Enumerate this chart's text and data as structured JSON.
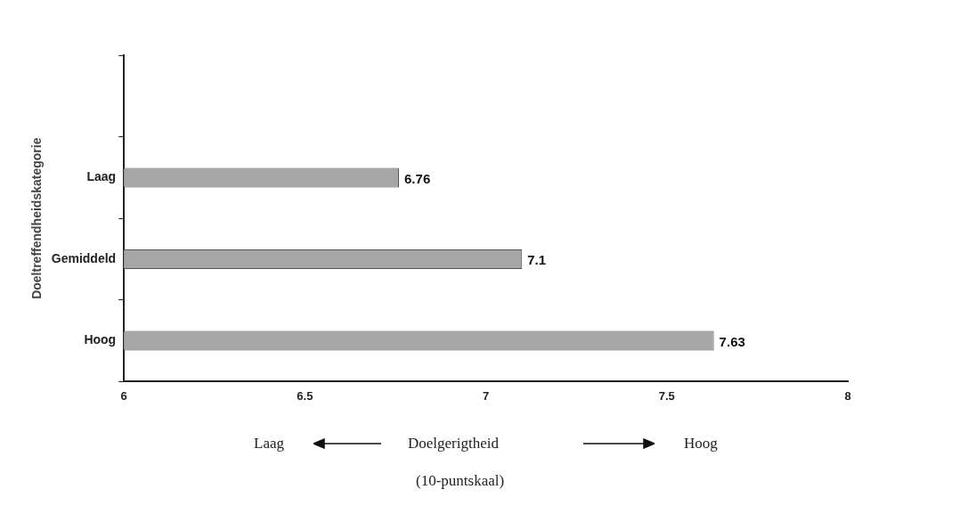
{
  "chart_data": {
    "type": "bar",
    "orientation": "horizontal",
    "categories": [
      null,
      "Laag",
      "Gemiddeld",
      "Hoog"
    ],
    "values": [
      null,
      6.76,
      7.1,
      7.63
    ],
    "color": "#a6a6a6",
    "data_labels": true,
    "xlim": [
      6,
      8
    ],
    "xticks": [
      6,
      6.5,
      7,
      7.5,
      8
    ],
    "grid": false,
    "legend": false,
    "xlabel": "Doelgerigtheid",
    "ylabel": "Doeltreffendheidskategorie",
    "annotations": [
      "Laag",
      "Hoog",
      "(10-puntskaal)"
    ]
  }
}
